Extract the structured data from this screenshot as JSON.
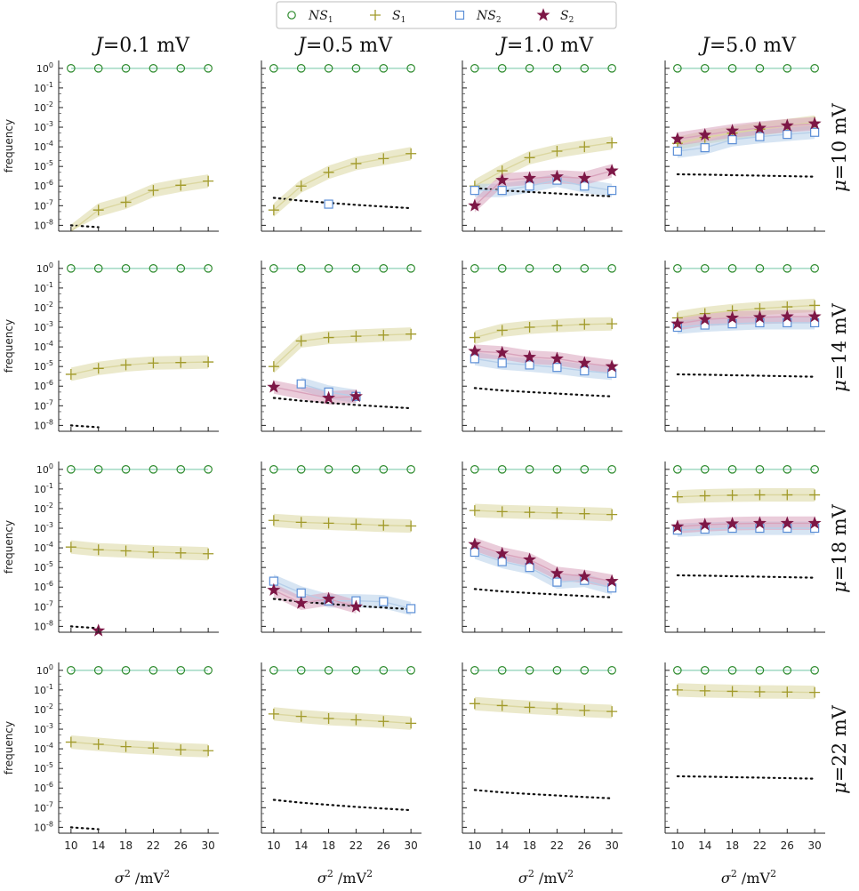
{
  "chart_data": {
    "type": "line",
    "figure": "grid of log-scale line plots with shaded bands",
    "columns": [
      "J=0.1 mV",
      "J=0.5 mV",
      "J=1.0 mV",
      "J=5.0 mV"
    ],
    "column_labels": [
      {
        "sym": "J",
        "rest": "=0.1 mV"
      },
      {
        "sym": "J",
        "rest": "=0.5 mV"
      },
      {
        "sym": "J",
        "rest": "=1.0 mV"
      },
      {
        "sym": "J",
        "rest": "=5.0 mV"
      }
    ],
    "rows": [
      "μ=10 mV",
      "μ=14 mV",
      "μ=18 mV",
      "μ=22 mV"
    ],
    "row_labels": [
      {
        "sym": "μ",
        "rest": "=10 mV"
      },
      {
        "sym": "μ",
        "rest": "=14 mV"
      },
      {
        "sym": "μ",
        "rest": "=18 mV"
      },
      {
        "sym": "μ",
        "rest": "=22 mV"
      }
    ],
    "xlabel": {
      "sym": "σ",
      "exp": "2",
      "sep": " /",
      "unit": "mV",
      "unit_exp": "2"
    },
    "ylabel": "frequency",
    "x": [
      10,
      14,
      18,
      22,
      26,
      30
    ],
    "xlim": [
      9.5,
      30.5
    ],
    "ylim_log10": [
      -8.3,
      0.4
    ],
    "y_ticks": [
      {
        "base": "10",
        "exp": "0"
      },
      {
        "base": "10",
        "exp": "-1"
      },
      {
        "base": "10",
        "exp": "-2"
      },
      {
        "base": "10",
        "exp": "-3"
      },
      {
        "base": "10",
        "exp": "-4"
      },
      {
        "base": "10",
        "exp": "-5"
      },
      {
        "base": "10",
        "exp": "-6"
      },
      {
        "base": "10",
        "exp": "-7"
      },
      {
        "base": "10",
        "exp": "-8"
      }
    ],
    "legend": [
      {
        "key": "NS1",
        "label": "NS",
        "sub": "1",
        "marker": "circle",
        "color": "#2e8b2e",
        "line": "#a8dcc8"
      },
      {
        "key": "S1",
        "label": "S",
        "sub": "1",
        "marker": "plus",
        "color": "#a19a2a",
        "line": "#dbd7a0"
      },
      {
        "key": "NS2",
        "label": "NS",
        "sub": "2",
        "marker": "square",
        "color": "#5b8ed6",
        "line": "#b7cfe9"
      },
      {
        "key": "S2",
        "label": "S",
        "sub": "2",
        "marker": "star",
        "color": "#7d1746",
        "line": "#d9a3bc"
      }
    ],
    "legend_position": "top-center",
    "reference_series": "dotted black line (unlabeled)",
    "panels": [
      {
        "row": 0,
        "col": 0,
        "NS1": [
          1,
          1,
          1,
          1,
          1,
          1
        ],
        "S1": [
          5e-09,
          6e-08,
          1.5e-07,
          6e-07,
          1.1e-06,
          1.8e-06
        ],
        "NS2": null,
        "S2": null,
        "ref": [
          1e-08,
          8e-09,
          null,
          null,
          null,
          null
        ]
      },
      {
        "row": 0,
        "col": 1,
        "NS1": [
          1,
          1,
          1,
          1,
          1,
          1
        ],
        "S1": [
          6e-08,
          1e-06,
          5e-06,
          1.4e-05,
          2.5e-05,
          4.5e-05
        ],
        "NS2": [
          null,
          null,
          1.2e-07,
          null,
          null,
          null
        ],
        "S2": null,
        "ref": [
          2.5e-07,
          1.8e-07,
          1.4e-07,
          1.1e-07,
          9e-08,
          7.5e-08
        ]
      },
      {
        "row": 0,
        "col": 2,
        "NS1": [
          1,
          1,
          1,
          1,
          1,
          1
        ],
        "S1": [
          1e-06,
          6e-06,
          2.8e-05,
          6e-05,
          0.0001,
          0.00016
        ],
        "NS2": [
          6e-07,
          6e-07,
          1e-06,
          2e-06,
          1e-06,
          6e-07
        ],
        "S2": [
          1e-07,
          2e-06,
          2.5e-06,
          3e-06,
          2.5e-06,
          6e-06
        ],
        "ref": [
          8e-07,
          6e-07,
          5e-07,
          4.2e-07,
          3.5e-07,
          3e-07
        ]
      },
      {
        "row": 0,
        "col": 3,
        "NS1": [
          1,
          1,
          1,
          1,
          1,
          1
        ],
        "S1": [
          0.00015,
          0.0003,
          0.0005,
          0.0008,
          0.0012,
          0.0018
        ],
        "NS2": [
          6e-05,
          9e-05,
          0.00023,
          0.00033,
          0.00043,
          0.00055
        ],
        "S2": [
          0.00025,
          0.0004,
          0.00065,
          0.0009,
          0.0012,
          0.0015
        ],
        "ref": [
          4e-06,
          3.8e-06,
          3.6e-06,
          3.4e-06,
          3.2e-06,
          3e-06
        ]
      },
      {
        "row": 1,
        "col": 0,
        "NS1": [
          1,
          1,
          1,
          1,
          1,
          1
        ],
        "S1": [
          4e-06,
          8e-06,
          1.2e-05,
          1.5e-05,
          1.6e-05,
          1.7e-05
        ],
        "NS2": null,
        "S2": null,
        "ref": [
          1e-08,
          8e-09,
          null,
          null,
          null,
          null
        ]
      },
      {
        "row": 1,
        "col": 1,
        "NS1": [
          1,
          1,
          1,
          1,
          1,
          1
        ],
        "S1": [
          1e-05,
          0.0002,
          0.0003,
          0.00035,
          0.0004,
          0.00045
        ],
        "NS2": [
          null,
          1.3e-06,
          5e-07,
          3e-07,
          null,
          null
        ],
        "S2": [
          9e-07,
          null,
          2.5e-07,
          3e-07,
          null,
          null
        ],
        "ref": [
          2.5e-07,
          1.8e-07,
          1.4e-07,
          1.1e-07,
          9e-08,
          7.5e-08
        ]
      },
      {
        "row": 1,
        "col": 2,
        "NS1": [
          1,
          1,
          1,
          1,
          1,
          1
        ],
        "S1": [
          0.0003,
          0.0007,
          0.001,
          0.0012,
          0.0014,
          0.0015
        ],
        "NS2": [
          2.5e-05,
          1.5e-05,
          1.2e-05,
          9e-06,
          6e-06,
          4.5e-06
        ],
        "S2": [
          6e-05,
          5e-05,
          3e-05,
          2.5e-05,
          1.5e-05,
          1e-05
        ],
        "ref": [
          8e-07,
          6e-07,
          5e-07,
          4.2e-07,
          3.5e-07,
          3e-07
        ]
      },
      {
        "row": 1,
        "col": 3,
        "NS1": [
          1,
          1,
          1,
          1,
          1,
          1
        ],
        "S1": [
          0.003,
          0.005,
          0.007,
          0.009,
          0.011,
          0.013
        ],
        "NS2": [
          0.001,
          0.0013,
          0.0015,
          0.0017,
          0.0017,
          0.0017
        ],
        "S2": [
          0.0015,
          0.0025,
          0.003,
          0.0032,
          0.0035,
          0.0035
        ],
        "ref": [
          4e-06,
          3.8e-06,
          3.6e-06,
          3.4e-06,
          3.2e-06,
          3e-06
        ]
      },
      {
        "row": 2,
        "col": 0,
        "NS1": [
          1,
          1,
          1,
          1,
          1,
          1
        ],
        "S1": [
          0.00011,
          8e-05,
          7e-05,
          6e-05,
          5.5e-05,
          5e-05
        ],
        "NS2": null,
        "S2": [
          null,
          6e-09,
          null,
          null,
          null,
          null
        ],
        "ref": [
          1e-08,
          8e-09,
          null,
          null,
          null,
          null
        ]
      },
      {
        "row": 2,
        "col": 1,
        "NS1": [
          1,
          1,
          1,
          1,
          1,
          1
        ],
        "S1": [
          0.0025,
          0.002,
          0.0018,
          0.0016,
          0.0014,
          0.0013
        ],
        "NS2": [
          2e-06,
          5e-07,
          2e-07,
          2e-07,
          1.8e-07,
          8e-08
        ],
        "S2": [
          7e-07,
          1.5e-07,
          2.5e-07,
          1e-07,
          null,
          null
        ],
        "ref": [
          2.5e-07,
          1.8e-07,
          1.4e-07,
          1.1e-07,
          9e-08,
          7.5e-08
        ]
      },
      {
        "row": 2,
        "col": 2,
        "NS1": [
          1,
          1,
          1,
          1,
          1,
          1
        ],
        "S1": [
          0.008,
          0.007,
          0.0065,
          0.006,
          0.0055,
          0.005
        ],
        "NS2": [
          6e-05,
          2e-05,
          1e-05,
          1.8e-06,
          2.2e-06,
          9e-07
        ],
        "S2": [
          0.00015,
          5e-05,
          2.5e-05,
          5e-06,
          3.5e-06,
          2e-06
        ],
        "ref": [
          8e-07,
          6e-07,
          5e-07,
          4.2e-07,
          3.5e-07,
          3e-07
        ]
      },
      {
        "row": 2,
        "col": 3,
        "NS1": [
          1,
          1,
          1,
          1,
          1,
          1
        ],
        "S1": [
          0.04,
          0.045,
          0.048,
          0.05,
          0.05,
          0.05
        ],
        "NS2": [
          0.0008,
          0.0009,
          0.001,
          0.001,
          0.001,
          0.001
        ],
        "S2": [
          0.0012,
          0.0015,
          0.0017,
          0.0018,
          0.0018,
          0.0018
        ],
        "ref": [
          4e-06,
          3.8e-06,
          3.6e-06,
          3.4e-06,
          3.2e-06,
          3e-06
        ]
      },
      {
        "row": 3,
        "col": 0,
        "NS1": [
          1,
          1,
          1,
          1,
          1,
          1
        ],
        "S1": [
          0.00022,
          0.00017,
          0.00013,
          0.00011,
          9e-05,
          8e-05
        ],
        "NS2": null,
        "S2": null,
        "ref": [
          1e-08,
          8e-09,
          null,
          null,
          null,
          null
        ]
      },
      {
        "row": 3,
        "col": 1,
        "NS1": [
          1,
          1,
          1,
          1,
          1,
          1
        ],
        "S1": [
          0.006,
          0.0045,
          0.0035,
          0.003,
          0.0025,
          0.002
        ],
        "NS2": null,
        "S2": null,
        "ref": [
          2.5e-07,
          1.8e-07,
          1.4e-07,
          1.1e-07,
          9e-08,
          7.5e-08
        ]
      },
      {
        "row": 3,
        "col": 2,
        "NS1": [
          1,
          1,
          1,
          1,
          1,
          1
        ],
        "S1": [
          0.02,
          0.016,
          0.013,
          0.011,
          0.009,
          0.008
        ],
        "NS2": null,
        "S2": null,
        "ref": [
          8e-07,
          6e-07,
          5e-07,
          4.2e-07,
          3.5e-07,
          3e-07
        ]
      },
      {
        "row": 3,
        "col": 3,
        "NS1": [
          1,
          1,
          1,
          1,
          1,
          1
        ],
        "S1": [
          0.1,
          0.09,
          0.085,
          0.08,
          0.078,
          0.075
        ],
        "NS2": null,
        "S2": null,
        "ref": [
          4e-06,
          3.8e-06,
          3.6e-06,
          3.4e-06,
          3.2e-06,
          3e-06
        ]
      }
    ]
  }
}
